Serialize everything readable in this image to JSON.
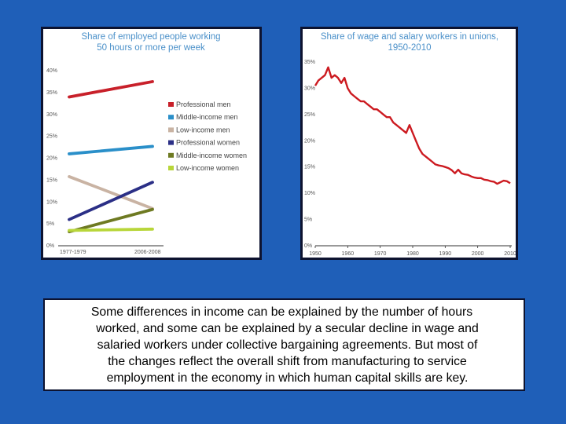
{
  "colors": {
    "background": "#1f5fb8",
    "title_blue": "#4a90c9",
    "professional_men": "#c8202a",
    "middle_income_men": "#2a8fc9",
    "low_income_men": "#c9b3a3",
    "professional_women": "#2b2f86",
    "middle_income_women": "#6e7a22",
    "low_income_women": "#b8d63a",
    "union_line": "#cc1a20"
  },
  "chart_data": [
    {
      "type": "line",
      "title_lines": [
        "Share of employed people working",
        "50 hours or more per week"
      ],
      "categories": [
        "1977-1979",
        "2006-2008"
      ],
      "y_ticks": [
        "40%",
        "35%",
        "30%",
        "25%",
        "20%",
        "15%",
        "10%",
        "5%",
        "0%"
      ],
      "ylim": [
        0,
        40
      ],
      "legend_position": "right",
      "series": [
        {
          "name": "Professional men",
          "values": [
            34,
            37.5
          ],
          "color_key": "professional_men"
        },
        {
          "name": "Middle-income men",
          "values": [
            21,
            22.7
          ],
          "color_key": "middle_income_men"
        },
        {
          "name": "Low-income men",
          "values": [
            15.8,
            8.5
          ],
          "color_key": "low_income_men"
        },
        {
          "name": "Professional women",
          "values": [
            6,
            14.5
          ],
          "color_key": "professional_women"
        },
        {
          "name": "Middle-income women",
          "values": [
            3.2,
            8.3
          ],
          "color_key": "middle_income_women"
        },
        {
          "name": "Low-income women",
          "values": [
            3.5,
            3.8
          ],
          "color_key": "low_income_women"
        }
      ]
    },
    {
      "type": "line",
      "title_lines": [
        "Share of wage and salary workers in unions,",
        "1950-2010"
      ],
      "x_ticks": [
        "1950",
        "1960",
        "1970",
        "1980",
        "1990",
        "2000",
        "2010"
      ],
      "y_ticks": [
        "35%",
        "30%",
        "25%",
        "20%",
        "15%",
        "10%",
        "5%",
        "0%"
      ],
      "xlim": [
        1950,
        2010
      ],
      "ylim": [
        0,
        35
      ],
      "series": [
        {
          "color_key": "union_line",
          "x": [
            1950,
            1951,
            1952,
            1953,
            1954,
            1955,
            1956,
            1957,
            1958,
            1959,
            1960,
            1961,
            1962,
            1963,
            1964,
            1965,
            1966,
            1967,
            1968,
            1969,
            1970,
            1971,
            1972,
            1973,
            1974,
            1975,
            1976,
            1977,
            1978,
            1979,
            1980,
            1981,
            1982,
            1983,
            1984,
            1985,
            1986,
            1987,
            1988,
            1989,
            1990,
            1991,
            1992,
            1993,
            1994,
            1995,
            1996,
            1997,
            1998,
            1999,
            2000,
            2001,
            2002,
            2003,
            2004,
            2005,
            2006,
            2007,
            2008,
            2009,
            2010
          ],
          "y": [
            30.5,
            31.5,
            32,
            32.5,
            34,
            32,
            32.5,
            32,
            31,
            32,
            30,
            29,
            28.5,
            28,
            27.5,
            27.5,
            27,
            26.5,
            26,
            26,
            25.5,
            25,
            24.5,
            24.5,
            23.5,
            23,
            22.5,
            22,
            21.5,
            23,
            21.5,
            20,
            18.5,
            17.5,
            17,
            16.5,
            16,
            15.5,
            15.3,
            15.2,
            15,
            14.8,
            14.4,
            13.8,
            14.5,
            13.8,
            13.6,
            13.5,
            13.2,
            13,
            12.9,
            12.9,
            12.6,
            12.5,
            12.3,
            12.2,
            11.8,
            12.1,
            12.4,
            12.3,
            11.9
          ]
        }
      ]
    }
  ],
  "caption": {
    "lines": [
      "Some differences in income can be explained by the number of hours",
      "worked, and some can be explained by a secular decline in wage and",
      "salaried workers under collective bargaining agreements.  But most of",
      "the changes reflect the overall shift from manufacturing to service",
      "employment in the economy in which human capital skills are key."
    ]
  }
}
